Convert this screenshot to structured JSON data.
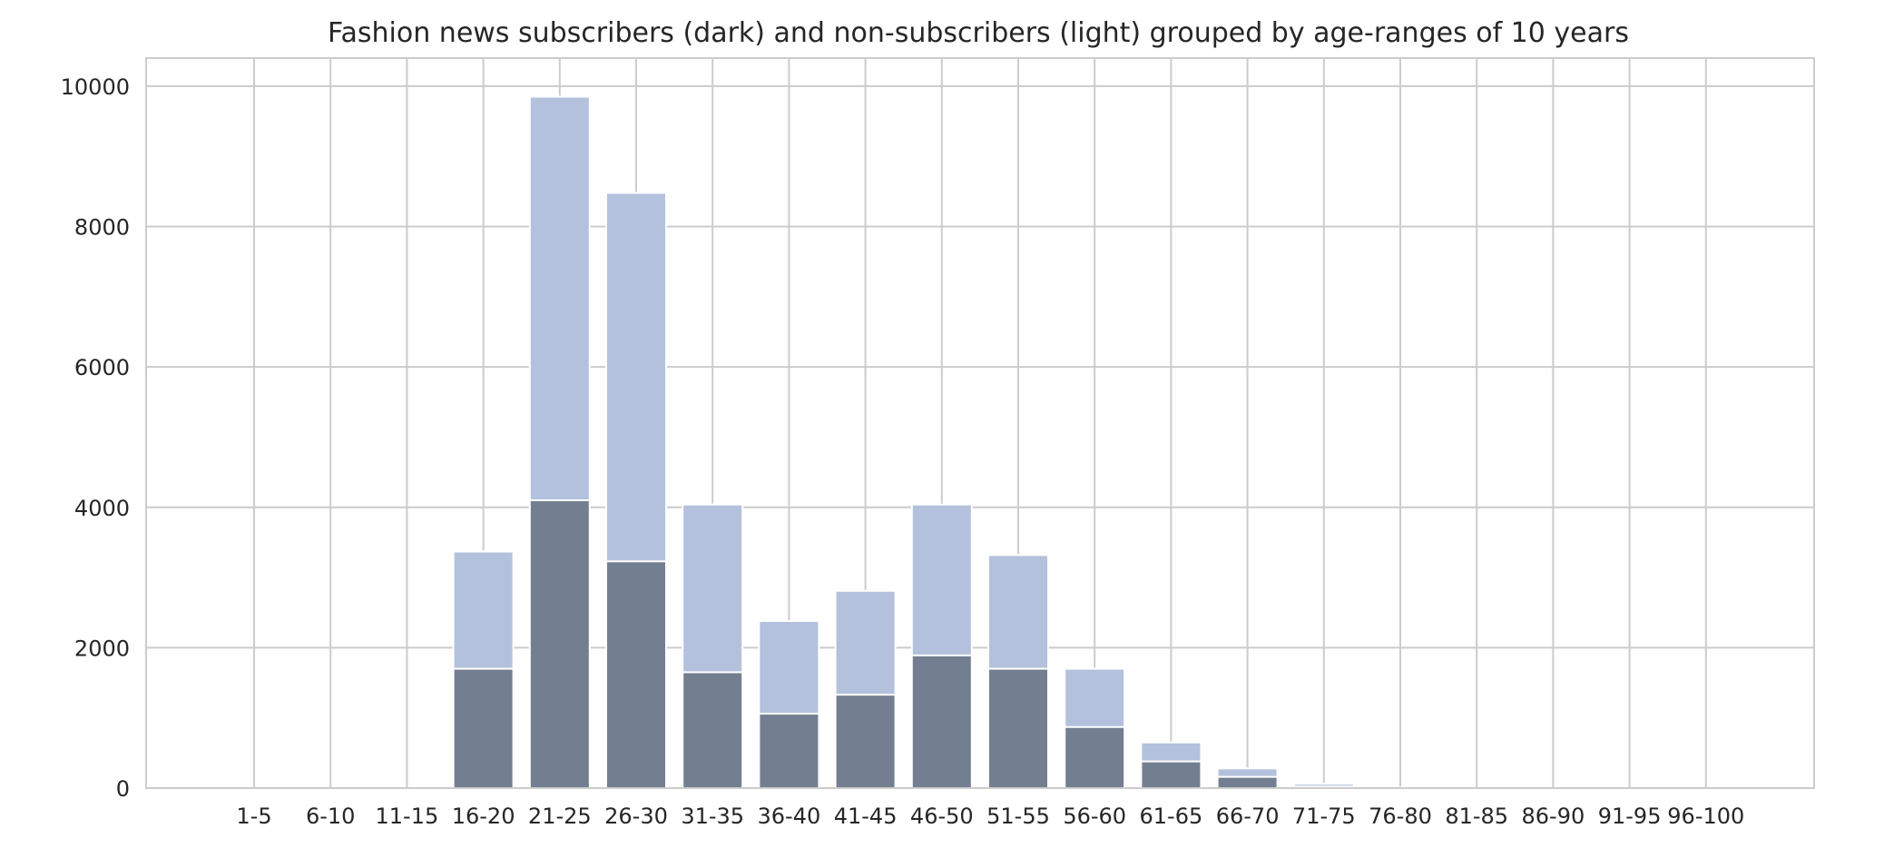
{
  "chart_data": {
    "type": "bar",
    "stacked": false,
    "title": "Fashion news subscribers (dark) and non-subscribers (light) grouped by age-ranges of 10 years",
    "xlabel": "",
    "ylabel": "",
    "ylim": [
      0,
      10400
    ],
    "yticks": [
      0,
      2000,
      4000,
      6000,
      8000,
      10000
    ],
    "grid": true,
    "categories": [
      "1-5",
      "6-10",
      "11-15",
      "16-20",
      "21-25",
      "26-30",
      "31-35",
      "36-40",
      "41-45",
      "46-50",
      "51-55",
      "56-60",
      "61-65",
      "66-70",
      "71-75",
      "76-80",
      "81-85",
      "86-90",
      "91-95",
      "96-100"
    ],
    "series": [
      {
        "color": "#b3c1dc",
        "values": [
          0,
          0,
          0,
          3370,
          9850,
          8480,
          4040,
          2380,
          2810,
          4040,
          3320,
          1700,
          650,
          280,
          60,
          10,
          0,
          0,
          0,
          0
        ]
      },
      {
        "color": "#737f90",
        "values": [
          0,
          0,
          0,
          1700,
          4100,
          3230,
          1650,
          1060,
          1330,
          1890,
          1700,
          870,
          380,
          160,
          20,
          5,
          0,
          0,
          0,
          0
        ]
      }
    ]
  },
  "style": {
    "grid_color": "#cccccc",
    "frame_color": "#cccccc",
    "bar_edge_color": "#ffffff"
  }
}
